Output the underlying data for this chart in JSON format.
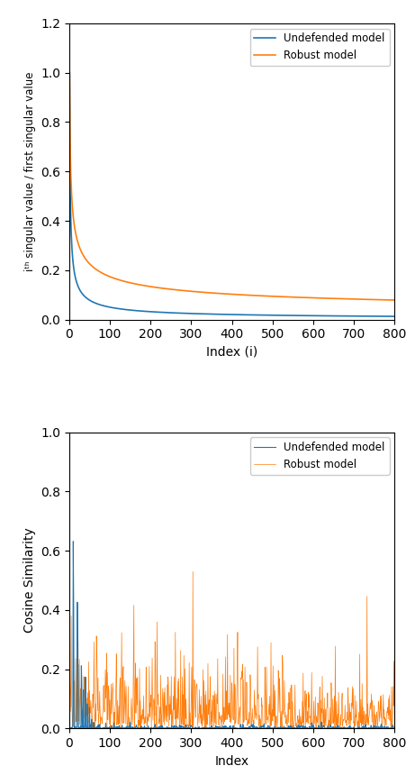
{
  "plot1": {
    "xlabel": "Index (i)",
    "ylabel": "iᵗʰ singular value / first singular value",
    "xlim": [
      0,
      800
    ],
    "ylim": [
      0,
      1.2
    ],
    "yticks": [
      0.0,
      0.2,
      0.4,
      0.6,
      0.8,
      1.0,
      1.2
    ],
    "xticks": [
      0,
      100,
      200,
      300,
      400,
      500,
      600,
      700,
      800
    ],
    "undefended_color": "#1f77b4",
    "robust_color": "#ff7f0e",
    "legend_labels": [
      "Undefended model",
      "Robust model"
    ],
    "undefended_alpha": 0.55,
    "robust_alpha": 0.08
  },
  "plot2": {
    "xlabel": "Index",
    "ylabel": "Cosine Similarity",
    "xlim": [
      0,
      800
    ],
    "ylim": [
      0,
      1.0
    ],
    "yticks": [
      0.0,
      0.2,
      0.4,
      0.6,
      0.8,
      1.0
    ],
    "xticks": [
      0,
      100,
      200,
      300,
      400,
      500,
      600,
      700,
      800
    ],
    "undefended_color": "#1f77b4",
    "robust_color": "#ff7f0e",
    "legend_labels": [
      "Undefended model",
      "Robust model"
    ]
  },
  "n_points": 800,
  "figsize": [
    4.52,
    8.6
  ],
  "dpi": 100
}
